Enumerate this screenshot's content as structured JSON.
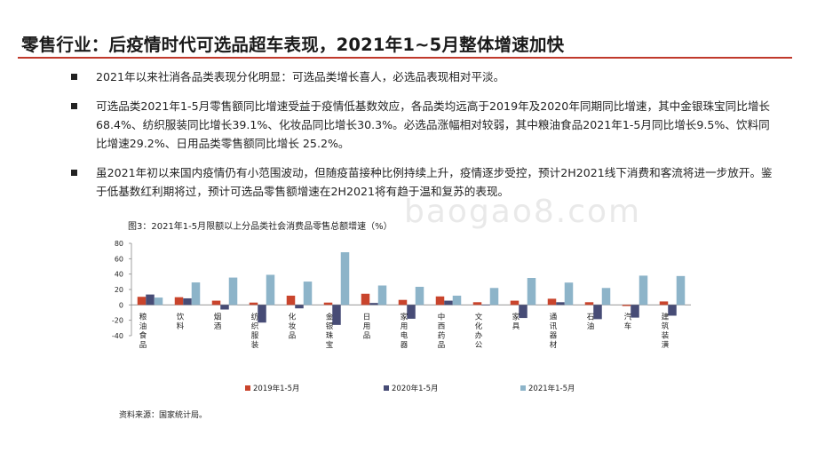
{
  "title": "零售行业：后疫情时代可选品超车表现，2021年1~5月整体增速加快",
  "bullets": [
    "2021年以来社消各品类表现分化明显：可选品类增长喜人，必选品表现相对平淡。",
    "可选品类2021年1-5月零售额同比增速受益于疫情低基数效应，各品类均远高于2019年及2020年同期同比增速，其中金银珠宝同比增长68.4%、纺织服装同比增长39.1%、化妆品同比增长30.3%。必选品涨幅相对较弱，其中粮油食品2021年1-5月同比增长9.5%、饮料同比增速29.2%、日用品类零售额同比增长 25.2%。",
    "虽2021年初以来国内疫情仍有小范围波动，但随疫苗接种比例持续上升，疫情逐步受控，预计2H2021线下消费和客流将进一步放开。鉴于低基数红利期将过，预计可选品零售额增速在2H2021将有趋于温和复苏的表现。"
  ],
  "watermark": "baogao8.com",
  "chart_caption": "图3：2021年1-5月限额以上分品类社会消费品零售总额增速（%）",
  "source": "资料来源：国家统计局。",
  "chart_data": {
    "type": "bar",
    "categories": [
      "粮油食品",
      "饮料",
      "烟酒",
      "纺织服装",
      "化妆品",
      "金银珠宝",
      "日用品",
      "家用电器",
      "中西药品",
      "文化办公",
      "家具",
      "通讯器材",
      "石油",
      "汽车",
      "建筑装潢"
    ],
    "series": [
      {
        "name": "2019年1-5月",
        "color": "#c9442c",
        "values": [
          10.5,
          10.0,
          5.5,
          3.0,
          12.0,
          3.0,
          14.5,
          6.5,
          11.0,
          3.5,
          5.5,
          8.0,
          3.5,
          -1.5,
          4.5
        ]
      },
      {
        "name": "2020年1-5月",
        "color": "#474c76",
        "values": [
          13.5,
          8.5,
          -6.0,
          -23.0,
          -4.5,
          -26.0,
          2.5,
          -18.0,
          5.5,
          0.0,
          -17.0,
          3.5,
          -18.5,
          -16.5,
          -14.0
        ]
      },
      {
        "name": "2021年1-5月",
        "color": "#8db4c9",
        "values": [
          9.5,
          29.2,
          35.5,
          39.1,
          30.3,
          68.4,
          25.2,
          23.5,
          12.0,
          22.0,
          35.0,
          29.0,
          22.0,
          38.0,
          37.5
        ]
      }
    ],
    "ylim": [
      -40,
      80
    ],
    "yticks": [
      80,
      60,
      40,
      20,
      0,
      -20,
      -40
    ],
    "legend_position": "bottom"
  }
}
